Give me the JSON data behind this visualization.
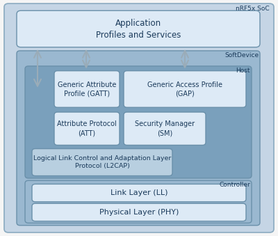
{
  "bg_outer": "#c5d5e5",
  "bg_softdevice": "#9ab8d0",
  "bg_host": "#7aa0bc",
  "bg_controller": "#9ab8d0",
  "bg_white_box": "#ddeaf6",
  "bg_l2cap": "#b8cfe0",
  "text_color": "#1a3a5a",
  "edge_color": "#6a90aa",
  "edge_outer": "#8aaac0",
  "arrow_color": "#c0ccd6",
  "arrow_edge": "#9aacb8",
  "labels": {
    "nRF5x": "nRF5x SoC",
    "softdevice": "SoftDevice",
    "host": "Host",
    "controller": "Controller",
    "app": "Application\nProfiles and Services",
    "gatt": "Generic Attribute\nProfile (GATT)",
    "gap": "Generic Access Profile\n(GAP)",
    "att": "Attribute Protocol\n(ATT)",
    "sm": "Security Manager\n(SM)",
    "l2cap": "Logical Link Control and Adaptation Layer\nProtocol (L2CAP)",
    "ll": "Link Layer (LL)",
    "phy": "Physical Layer (PHY)"
  },
  "fig_w": 4.0,
  "fig_h": 3.39,
  "dpi": 100
}
